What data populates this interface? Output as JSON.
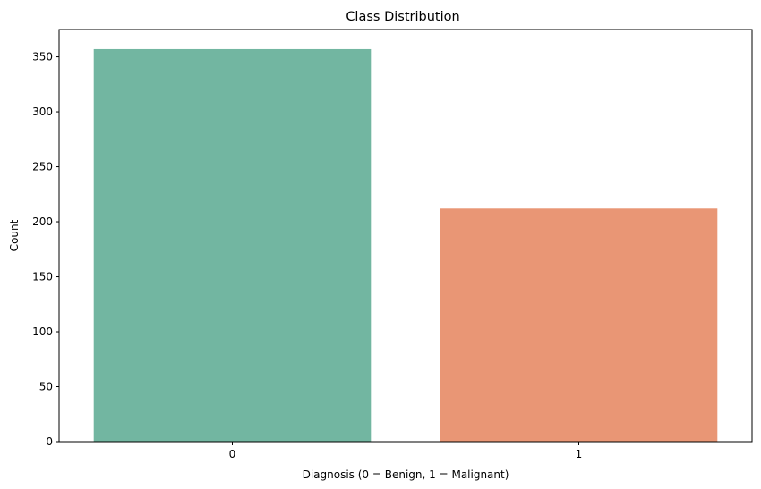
{
  "chart_data": {
    "type": "bar",
    "title": "Class Distribution",
    "xlabel": "Diagnosis (0 = Benign, 1 = Malignant)",
    "ylabel": "Count",
    "categories": [
      "0",
      "1"
    ],
    "values": [
      357,
      212
    ],
    "colors": [
      "#72b6a1",
      "#e99675"
    ],
    "ylim": [
      0,
      374.85
    ],
    "yticks": [
      "0",
      "50",
      "100",
      "150",
      "200",
      "250",
      "300",
      "350"
    ],
    "grid": false,
    "legend": "none"
  }
}
